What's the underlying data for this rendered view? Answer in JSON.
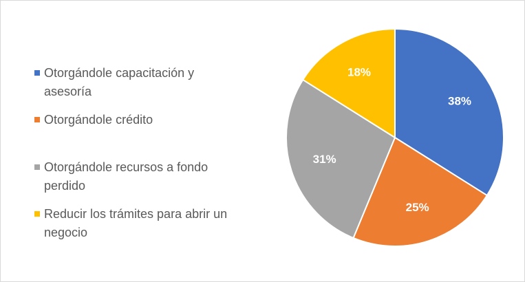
{
  "chart_data": {
    "type": "pie",
    "categories": [
      "Otorgándole capacitación y asesoría",
      "Otorgándole crédito",
      "Otorgándole recursos a fondo perdido",
      "Reducir los trámites para abrir un negocio"
    ],
    "values": [
      38,
      25,
      31,
      18
    ],
    "value_labels": [
      "38%",
      "25%",
      "31%",
      "18%"
    ],
    "colors": [
      "#4472c4",
      "#ed7d31",
      "#a5a5a5",
      "#ffc000"
    ],
    "legend": "left"
  }
}
